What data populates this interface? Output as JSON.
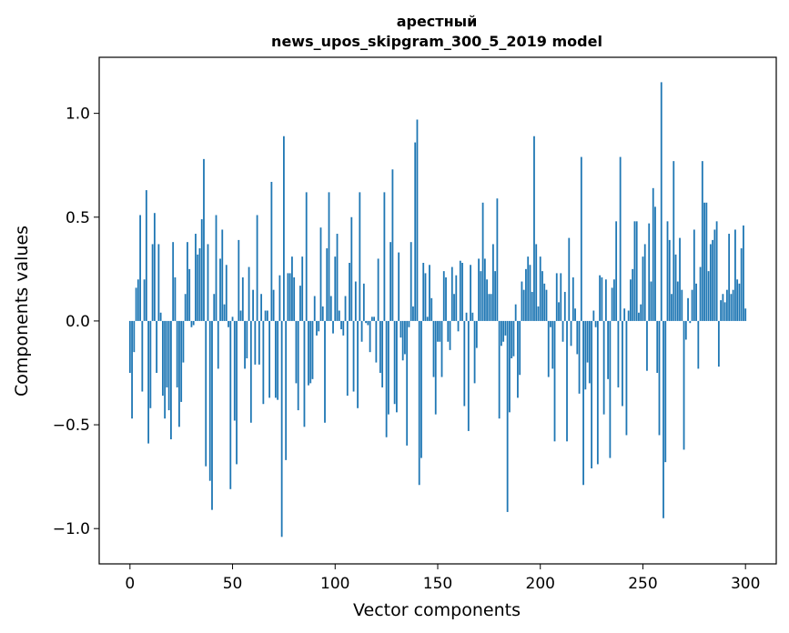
{
  "chart_data": {
    "type": "bar",
    "title_line1": "арестный",
    "title_line2": "news_upos_skipgram_300_5_2019 model",
    "xlabel": "Vector components",
    "ylabel": "Components values",
    "xlim": [
      -15,
      315
    ],
    "ylim": [
      -1.17,
      1.27
    ],
    "xticks": [
      0,
      50,
      100,
      150,
      200,
      250,
      300
    ],
    "xtick_labels": [
      "0",
      "50",
      "100",
      "150",
      "200",
      "250",
      "300"
    ],
    "yticks": [
      -1.0,
      -0.5,
      0.0,
      0.5,
      1.0
    ],
    "ytick_labels": [
      "−1.0",
      "−0.5",
      "0.0",
      "0.5",
      "1.0"
    ],
    "bar_color": "#1f77b4",
    "grid": false,
    "values": [
      -0.25,
      -0.47,
      -0.15,
      0.16,
      0.2,
      0.51,
      -0.34,
      0.2,
      0.63,
      -0.59,
      -0.42,
      0.37,
      0.52,
      -0.25,
      0.37,
      0.04,
      -0.36,
      -0.47,
      -0.32,
      -0.43,
      -0.57,
      0.38,
      0.21,
      -0.32,
      -0.51,
      -0.39,
      -0.2,
      0.13,
      0.38,
      0.25,
      -0.03,
      -0.02,
      0.42,
      0.32,
      0.35,
      0.49,
      0.78,
      -0.7,
      0.37,
      -0.77,
      -0.91,
      0.13,
      0.51,
      -0.23,
      0.3,
      0.44,
      0.08,
      0.27,
      -0.03,
      -0.81,
      0.02,
      -0.48,
      -0.69,
      0.39,
      0.05,
      0.21,
      -0.23,
      -0.18,
      0.26,
      -0.49,
      0.15,
      -0.21,
      0.51,
      -0.21,
      0.13,
      -0.4,
      0.05,
      0.05,
      -0.37,
      0.67,
      0.15,
      -0.37,
      -0.38,
      0.22,
      -1.04,
      0.89,
      -0.67,
      0.23,
      0.23,
      0.31,
      0.21,
      -0.3,
      -0.43,
      0.17,
      0.31,
      -0.51,
      0.62,
      -0.31,
      -0.3,
      -0.28,
      0.12,
      -0.07,
      -0.05,
      0.45,
      0.07,
      -0.49,
      0.35,
      0.62,
      0.12,
      -0.06,
      0.31,
      0.42,
      0.05,
      -0.04,
      -0.07,
      0.12,
      -0.36,
      0.28,
      0.5,
      -0.34,
      0.19,
      -0.42,
      0.62,
      -0.1,
      0.18,
      -0.01,
      -0.02,
      -0.15,
      0.02,
      0.02,
      -0.2,
      0.3,
      -0.25,
      -0.32,
      0.62,
      -0.56,
      -0.45,
      0.38,
      0.73,
      -0.4,
      -0.44,
      0.33,
      -0.08,
      -0.19,
      -0.16,
      -0.6,
      -0.03,
      0.38,
      0.07,
      0.86,
      0.97,
      -0.79,
      -0.66,
      0.28,
      0.23,
      0.02,
      0.27,
      0.11,
      -0.27,
      -0.45,
      -0.1,
      -0.1,
      -0.27,
      0.24,
      0.21,
      -0.1,
      -0.14,
      0.26,
      0.13,
      0.22,
      -0.05,
      0.29,
      0.28,
      -0.41,
      0.04,
      -0.53,
      0.27,
      0.04,
      -0.3,
      -0.13,
      0.3,
      0.24,
      0.57,
      0.3,
      0.2,
      0.13,
      0.13,
      0.37,
      0.24,
      0.59,
      -0.47,
      -0.12,
      -0.1,
      -0.07,
      -0.92,
      -0.44,
      -0.18,
      -0.17,
      0.08,
      -0.37,
      -0.26,
      0.19,
      0.15,
      0.25,
      0.31,
      0.27,
      0.14,
      0.89,
      0.37,
      0.07,
      0.31,
      0.24,
      0.18,
      0.15,
      -0.27,
      -0.03,
      -0.23,
      -0.58,
      0.23,
      0.09,
      0.23,
      -0.1,
      0.14,
      -0.58,
      0.4,
      -0.12,
      0.21,
      0.06,
      -0.16,
      -0.35,
      0.79,
      -0.79,
      -0.33,
      -0.2,
      -0.3,
      -0.71,
      0.05,
      -0.03,
      -0.69,
      0.22,
      0.21,
      -0.45,
      0.2,
      -0.28,
      -0.66,
      0.16,
      0.2,
      0.48,
      -0.32,
      0.79,
      -0.41,
      0.06,
      -0.55,
      0.05,
      0.2,
      0.25,
      0.48,
      0.48,
      0.04,
      0.08,
      0.31,
      0.37,
      -0.24,
      0.47,
      0.19,
      0.64,
      0.55,
      -0.25,
      -0.55,
      1.15,
      -0.95,
      -0.68,
      0.48,
      0.39,
      0.13,
      0.77,
      0.32,
      0.19,
      0.4,
      0.15,
      -0.62,
      -0.09,
      0.11,
      -0.01,
      0.15,
      0.44,
      0.18,
      -0.23,
      0.26,
      0.77,
      0.57,
      0.57,
      0.24,
      0.37,
      0.39,
      0.44,
      0.48,
      -0.22,
      0.1,
      0.13,
      0.09,
      0.15,
      0.42,
      0.13,
      0.15,
      0.44,
      0.2,
      0.18,
      0.35,
      0.46,
      0.06
    ]
  }
}
